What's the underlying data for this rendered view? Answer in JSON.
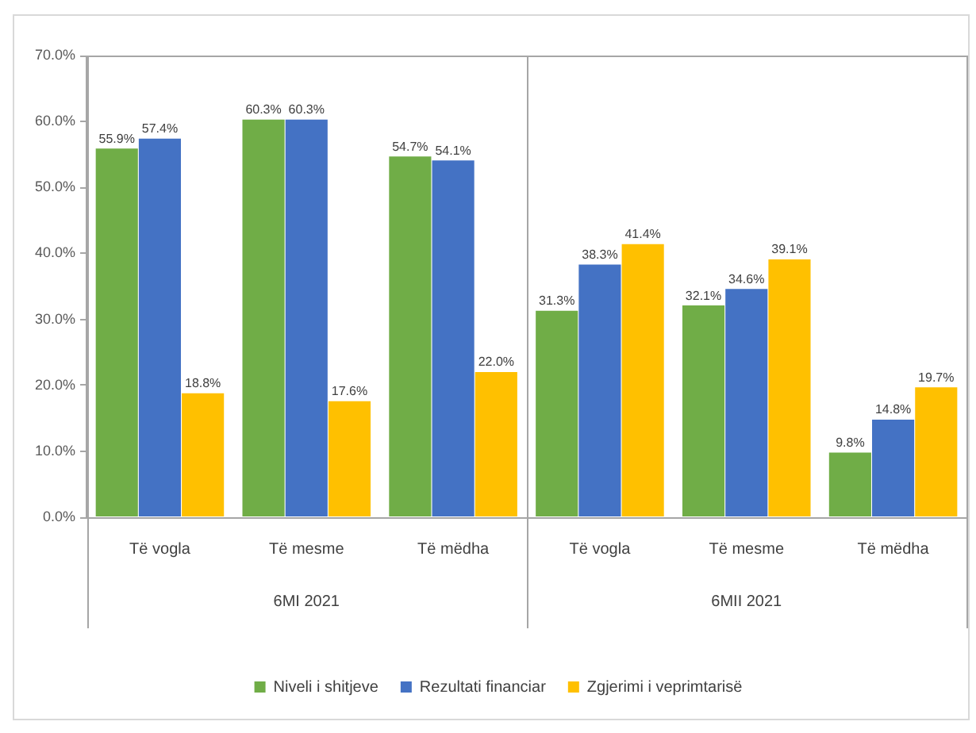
{
  "chart_data": {
    "type": "bar",
    "categories": [
      "Të vogla",
      "Të mesme",
      "Të mëdha",
      "Të vogla",
      "Të mesme",
      "Të mëdha"
    ],
    "series": [
      {
        "name": "Niveli i shitjeve",
        "color": "#70ad47",
        "values": [
          55.9,
          60.3,
          54.7,
          31.3,
          32.1,
          9.8
        ],
        "value_labels": [
          "55.9%",
          "60.3%",
          "54.7%",
          "31.3%",
          "32.1%",
          "9.8%"
        ]
      },
      {
        "name": "Rezultati financiar",
        "color": "#4472c4",
        "values": [
          57.4,
          60.3,
          54.1,
          38.3,
          34.6,
          14.8
        ],
        "value_labels": [
          "57.4%",
          "60.3%",
          "54.1%",
          "38.3%",
          "34.6%",
          "14.8%"
        ]
      },
      {
        "name": "Zgjerimi i veprimtarisë",
        "color": "#ffc000",
        "values": [
          18.8,
          17.6,
          22.0,
          41.4,
          39.1,
          19.7
        ],
        "value_labels": [
          "18.8%",
          "17.6%",
          "22.0%",
          "41.4%",
          "39.1%",
          "19.7%"
        ]
      }
    ],
    "ylim": [
      0,
      70
    ],
    "yticks": [
      {
        "value": 0,
        "label": "0.0%"
      },
      {
        "value": 10,
        "label": "10.0%"
      },
      {
        "value": 20,
        "label": "20.0%"
      },
      {
        "value": 30,
        "label": "30.0%"
      },
      {
        "value": 40,
        "label": "40.0%"
      },
      {
        "value": 50,
        "label": "50.0%"
      },
      {
        "value": 60,
        "label": "60.0%"
      },
      {
        "value": 70,
        "label": "70.0%"
      }
    ],
    "annotations": [
      "6MI 2021",
      "6MII 2021"
    ],
    "legend": "bottom"
  }
}
